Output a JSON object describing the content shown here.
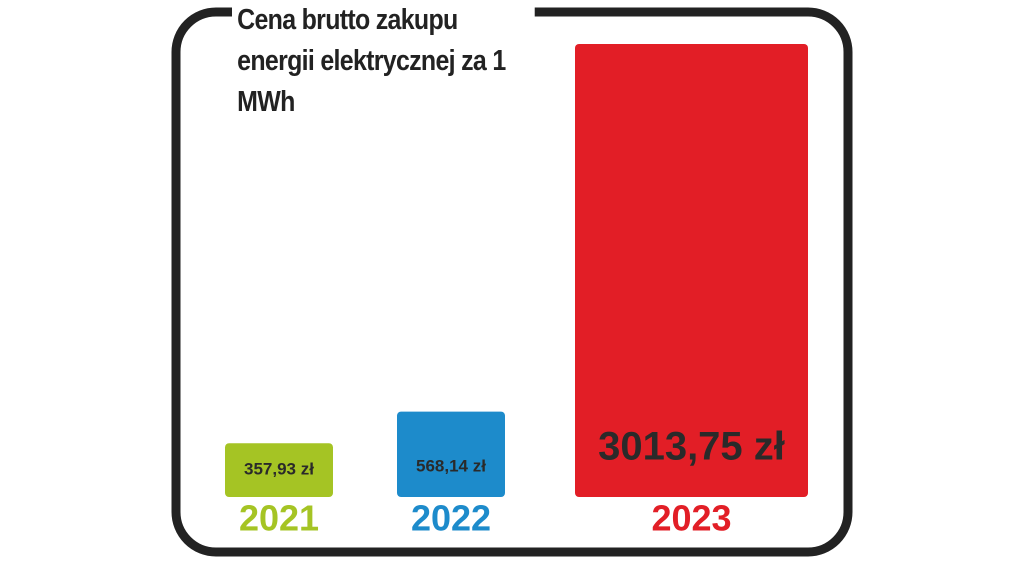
{
  "chart_data": {
    "type": "bar",
    "title": "Cena brutto zakupu energii elektrycznej za 1 MWh",
    "categories": [
      "2021",
      "2022",
      "2023"
    ],
    "values": [
      357.93,
      568.14,
      3013.75
    ],
    "value_labels": [
      "357,93 zł",
      "568,14 zł",
      "3013,75 zł"
    ],
    "colors": [
      "#a5c424",
      "#1d8bcb",
      "#e21e26"
    ]
  }
}
